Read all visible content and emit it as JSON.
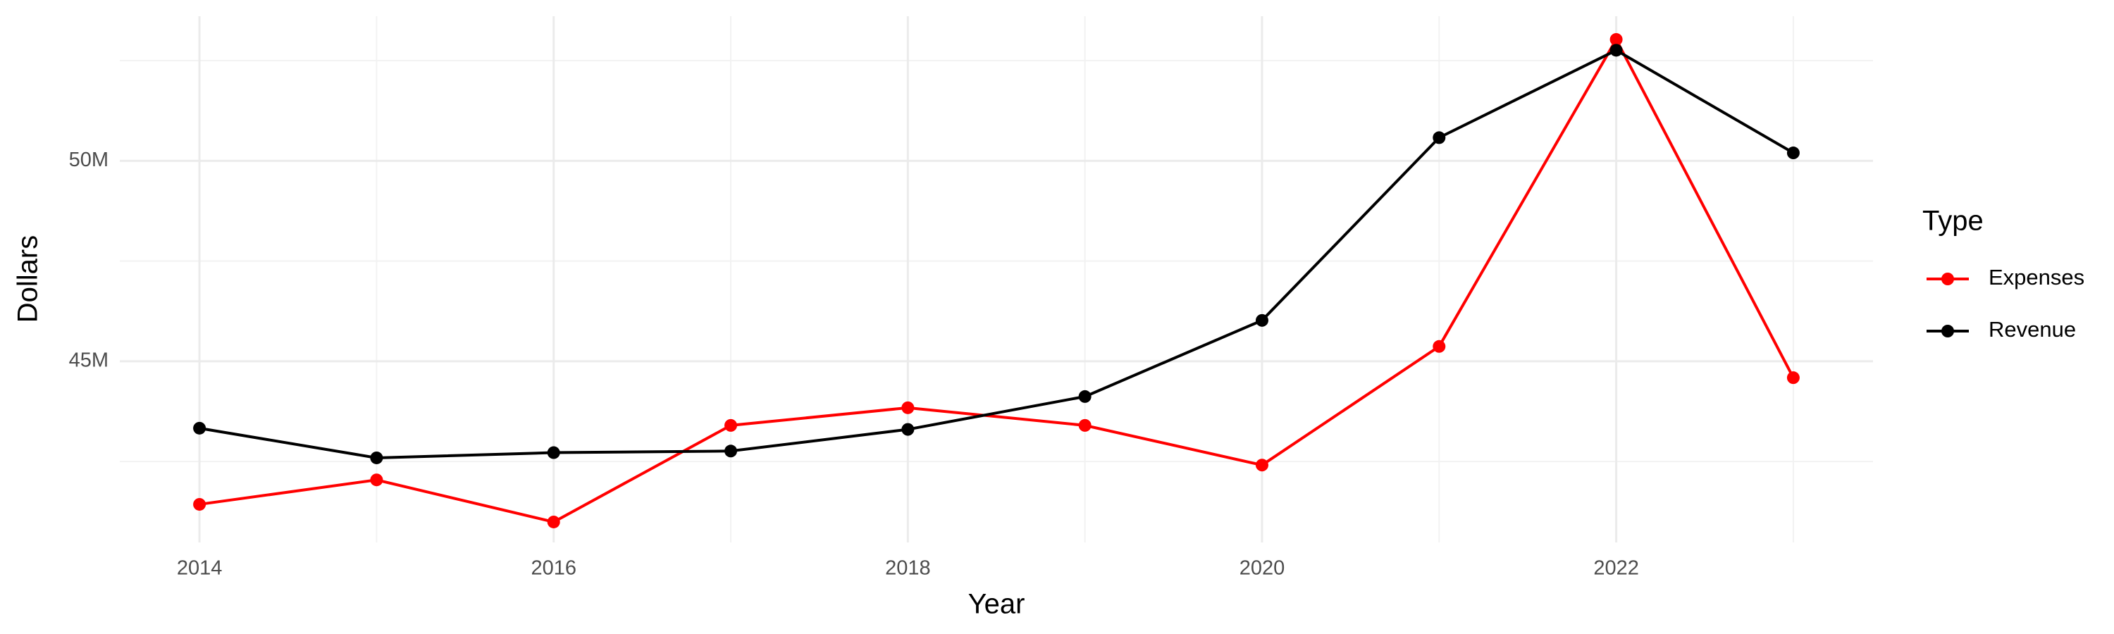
{
  "chart_data": {
    "type": "line",
    "x_label": "Year",
    "y_label": "Dollars",
    "legend_title": "Type",
    "legend_position": "right",
    "x": [
      2014,
      2015,
      2016,
      2017,
      2018,
      2019,
      2020,
      2021,
      2022,
      2023
    ],
    "series": [
      {
        "name": "Expenses",
        "color": "#ff0000",
        "values": [
          41430000,
          42040000,
          40990000,
          43400000,
          43840000,
          43400000,
          42410000,
          45370000,
          53030000,
          44590000
        ]
      },
      {
        "name": "Revenue",
        "color": "#000000",
        "values": [
          43330000,
          42590000,
          42720000,
          42760000,
          43300000,
          44120000,
          46020000,
          50580000,
          52760000,
          50200000
        ]
      }
    ],
    "xlim": [
      2013.55,
      2023.45
    ],
    "xticks": [
      2014,
      2016,
      2018,
      2020,
      2022
    ],
    "ylim": [
      40480000,
      53610000
    ],
    "yticks": [
      {
        "value": 45000000,
        "label": "45M"
      },
      {
        "value": 50000000,
        "label": "50M"
      }
    ],
    "grid": true
  }
}
